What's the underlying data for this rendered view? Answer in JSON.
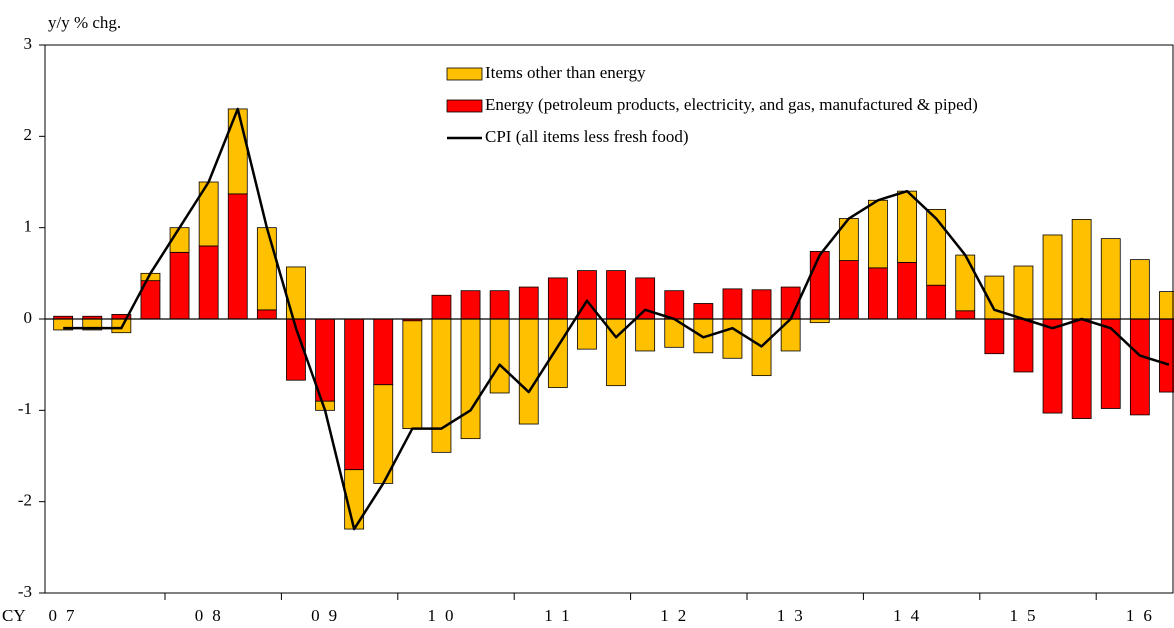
{
  "chart_data": {
    "type": "stacked_bar_line",
    "ylabel": "y/y % chg.",
    "xlabel": "CY",
    "year_labels": [
      "07",
      "08",
      "09",
      "10",
      "11",
      "12",
      "13",
      "14",
      "15",
      "16"
    ],
    "categories": [
      null,
      null,
      null,
      null,
      null,
      null,
      null,
      null,
      null,
      null,
      null,
      null,
      null,
      null,
      null,
      null,
      null,
      null,
      null,
      null,
      null,
      null,
      null,
      null,
      null,
      null,
      null,
      null,
      null,
      null,
      null,
      null,
      null,
      null,
      null,
      null,
      null,
      null,
      null
    ],
    "series": [
      {
        "name": "Items other than energy",
        "type": "bar",
        "color": "#ffc000",
        "values": [
          -0.12,
          -0.12,
          -0.15,
          0.08,
          0.27,
          0.7,
          0.93,
          0.9,
          0.57,
          -0.1,
          -0.65,
          -1.08,
          -1.18,
          -1.46,
          -1.31,
          -0.81,
          -1.15,
          -0.75,
          -0.33,
          -0.73,
          -0.35,
          -0.31,
          -0.37,
          -0.43,
          -0.62,
          -0.35,
          -0.04,
          0.46,
          0.74,
          0.78,
          0.83,
          0.61,
          0.47,
          0.58,
          0.92,
          1.09,
          0.88,
          0.65,
          0.3
        ]
      },
      {
        "name": "Energy (petroleum products, electricity, and gas, manufactured & piped)",
        "type": "bar",
        "color": "#ff0000",
        "values": [
          0.03,
          0.03,
          0.05,
          0.42,
          0.73,
          0.8,
          1.37,
          0.1,
          -0.67,
          -0.9,
          -1.65,
          -0.72,
          -0.02,
          0.26,
          0.31,
          0.31,
          0.35,
          0.45,
          0.53,
          0.53,
          0.45,
          0.31,
          0.17,
          0.33,
          0.32,
          0.35,
          0.74,
          0.64,
          0.56,
          0.62,
          0.37,
          0.09,
          -0.38,
          -0.58,
          -1.03,
          -1.09,
          -0.98,
          -1.05,
          -0.8
        ]
      },
      {
        "name": "CPI (all items less fresh food)",
        "type": "line",
        "color": "#000000",
        "values": [
          -0.1,
          -0.1,
          -0.1,
          0.5,
          1.0,
          1.5,
          2.3,
          1.0,
          -0.1,
          -1.0,
          -2.3,
          -1.8,
          -1.2,
          -1.2,
          -1.0,
          -0.5,
          -0.8,
          -0.3,
          0.2,
          -0.2,
          0.1,
          0.0,
          -0.2,
          -0.1,
          -0.3,
          0.0,
          0.7,
          1.1,
          1.3,
          1.4,
          1.1,
          0.7,
          0.1,
          0.0,
          -0.1,
          0.0,
          -0.1,
          -0.4,
          -0.5
        ]
      }
    ],
    "ylim": [
      -3,
      3
    ],
    "yticks": [
      -3,
      -2,
      -1,
      0,
      1,
      2,
      3
    ]
  }
}
